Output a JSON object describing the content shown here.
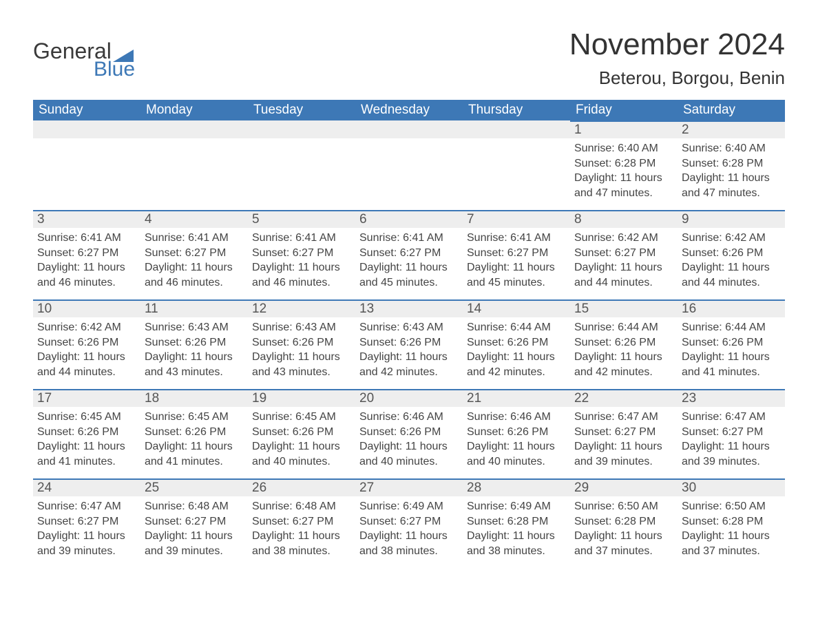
{
  "brand": {
    "top": "General",
    "bottom": "Blue",
    "accent": "#3d78b6"
  },
  "title": "November 2024",
  "location": "Beterou, Borgou, Benin",
  "weekday_labels": [
    "Sunday",
    "Monday",
    "Tuesday",
    "Wednesday",
    "Thursday",
    "Friday",
    "Saturday"
  ],
  "colors": {
    "header_bg": "#3d78b6",
    "header_text": "#ffffff",
    "daynum_bg": "#eeeeee",
    "daynum_border": "#3d78b6",
    "page_bg": "#ffffff",
    "text": "#3a3a3a"
  },
  "typography": {
    "title_fontsize": 44,
    "location_fontsize": 26,
    "weekday_fontsize": 19,
    "daynum_fontsize": 19,
    "body_fontsize": 16
  },
  "calendar": {
    "type": "table",
    "columns": 7,
    "first_weekday_index": 5,
    "days": [
      {
        "n": 1,
        "sunrise": "6:40 AM",
        "sunset": "6:28 PM",
        "daylight": "11 hours and 47 minutes."
      },
      {
        "n": 2,
        "sunrise": "6:40 AM",
        "sunset": "6:28 PM",
        "daylight": "11 hours and 47 minutes."
      },
      {
        "n": 3,
        "sunrise": "6:41 AM",
        "sunset": "6:27 PM",
        "daylight": "11 hours and 46 minutes."
      },
      {
        "n": 4,
        "sunrise": "6:41 AM",
        "sunset": "6:27 PM",
        "daylight": "11 hours and 46 minutes."
      },
      {
        "n": 5,
        "sunrise": "6:41 AM",
        "sunset": "6:27 PM",
        "daylight": "11 hours and 46 minutes."
      },
      {
        "n": 6,
        "sunrise": "6:41 AM",
        "sunset": "6:27 PM",
        "daylight": "11 hours and 45 minutes."
      },
      {
        "n": 7,
        "sunrise": "6:41 AM",
        "sunset": "6:27 PM",
        "daylight": "11 hours and 45 minutes."
      },
      {
        "n": 8,
        "sunrise": "6:42 AM",
        "sunset": "6:27 PM",
        "daylight": "11 hours and 44 minutes."
      },
      {
        "n": 9,
        "sunrise": "6:42 AM",
        "sunset": "6:26 PM",
        "daylight": "11 hours and 44 minutes."
      },
      {
        "n": 10,
        "sunrise": "6:42 AM",
        "sunset": "6:26 PM",
        "daylight": "11 hours and 44 minutes."
      },
      {
        "n": 11,
        "sunrise": "6:43 AM",
        "sunset": "6:26 PM",
        "daylight": "11 hours and 43 minutes."
      },
      {
        "n": 12,
        "sunrise": "6:43 AM",
        "sunset": "6:26 PM",
        "daylight": "11 hours and 43 minutes."
      },
      {
        "n": 13,
        "sunrise": "6:43 AM",
        "sunset": "6:26 PM",
        "daylight": "11 hours and 42 minutes."
      },
      {
        "n": 14,
        "sunrise": "6:44 AM",
        "sunset": "6:26 PM",
        "daylight": "11 hours and 42 minutes."
      },
      {
        "n": 15,
        "sunrise": "6:44 AM",
        "sunset": "6:26 PM",
        "daylight": "11 hours and 42 minutes."
      },
      {
        "n": 16,
        "sunrise": "6:44 AM",
        "sunset": "6:26 PM",
        "daylight": "11 hours and 41 minutes."
      },
      {
        "n": 17,
        "sunrise": "6:45 AM",
        "sunset": "6:26 PM",
        "daylight": "11 hours and 41 minutes."
      },
      {
        "n": 18,
        "sunrise": "6:45 AM",
        "sunset": "6:26 PM",
        "daylight": "11 hours and 41 minutes."
      },
      {
        "n": 19,
        "sunrise": "6:45 AM",
        "sunset": "6:26 PM",
        "daylight": "11 hours and 40 minutes."
      },
      {
        "n": 20,
        "sunrise": "6:46 AM",
        "sunset": "6:26 PM",
        "daylight": "11 hours and 40 minutes."
      },
      {
        "n": 21,
        "sunrise": "6:46 AM",
        "sunset": "6:26 PM",
        "daylight": "11 hours and 40 minutes."
      },
      {
        "n": 22,
        "sunrise": "6:47 AM",
        "sunset": "6:27 PM",
        "daylight": "11 hours and 39 minutes."
      },
      {
        "n": 23,
        "sunrise": "6:47 AM",
        "sunset": "6:27 PM",
        "daylight": "11 hours and 39 minutes."
      },
      {
        "n": 24,
        "sunrise": "6:47 AM",
        "sunset": "6:27 PM",
        "daylight": "11 hours and 39 minutes."
      },
      {
        "n": 25,
        "sunrise": "6:48 AM",
        "sunset": "6:27 PM",
        "daylight": "11 hours and 39 minutes."
      },
      {
        "n": 26,
        "sunrise": "6:48 AM",
        "sunset": "6:27 PM",
        "daylight": "11 hours and 38 minutes."
      },
      {
        "n": 27,
        "sunrise": "6:49 AM",
        "sunset": "6:27 PM",
        "daylight": "11 hours and 38 minutes."
      },
      {
        "n": 28,
        "sunrise": "6:49 AM",
        "sunset": "6:28 PM",
        "daylight": "11 hours and 38 minutes."
      },
      {
        "n": 29,
        "sunrise": "6:50 AM",
        "sunset": "6:28 PM",
        "daylight": "11 hours and 37 minutes."
      },
      {
        "n": 30,
        "sunrise": "6:50 AM",
        "sunset": "6:28 PM",
        "daylight": "11 hours and 37 minutes."
      }
    ],
    "labels": {
      "sunrise": "Sunrise:",
      "sunset": "Sunset:",
      "daylight": "Daylight:"
    }
  }
}
